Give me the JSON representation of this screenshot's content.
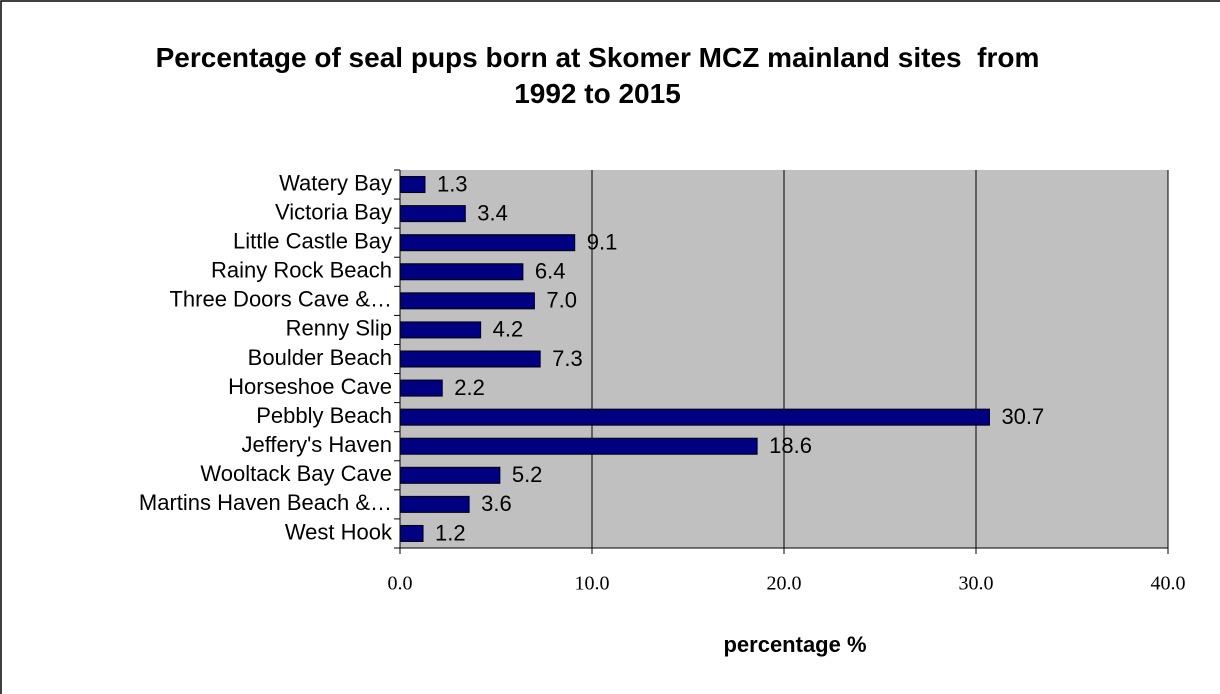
{
  "chart_data": {
    "type": "bar",
    "orientation": "horizontal",
    "title": "Percentage of seal pups born at Skomer MCZ mainland sites  from 1992 to 2015",
    "x_label": "percentage  %",
    "categories": [
      "Watery Bay",
      "Victoria Bay",
      "Little Castle Bay",
      "Rainy Rock Beach",
      "Three Doors Cave &…",
      "Renny Slip",
      "Boulder Beach",
      "Horseshoe Cave",
      "Pebbly Beach",
      "Jeffery's Haven",
      "Wooltack Bay Cave",
      "Martins Haven Beach &…",
      "West Hook"
    ],
    "values": [
      1.3,
      3.4,
      9.1,
      6.4,
      7.0,
      4.2,
      7.3,
      2.2,
      30.7,
      18.6,
      5.2,
      3.6,
      1.2
    ],
    "value_labels": [
      "1.3",
      "3.4",
      "9.1",
      "6.4",
      "7.0",
      "4.2",
      "7.3",
      "2.2",
      "30.7",
      "18.6",
      "5.2",
      "3.6",
      "1.2"
    ],
    "color": "#000080",
    "xlim": [
      0,
      40
    ],
    "xticks": [
      {
        "value": 0,
        "label": "0.0"
      },
      {
        "value": 10,
        "label": "10.0"
      },
      {
        "value": 20,
        "label": "20.0"
      },
      {
        "value": 30,
        "label": "30.0"
      },
      {
        "value": 40,
        "label": "40.0"
      }
    ],
    "grid": true
  }
}
